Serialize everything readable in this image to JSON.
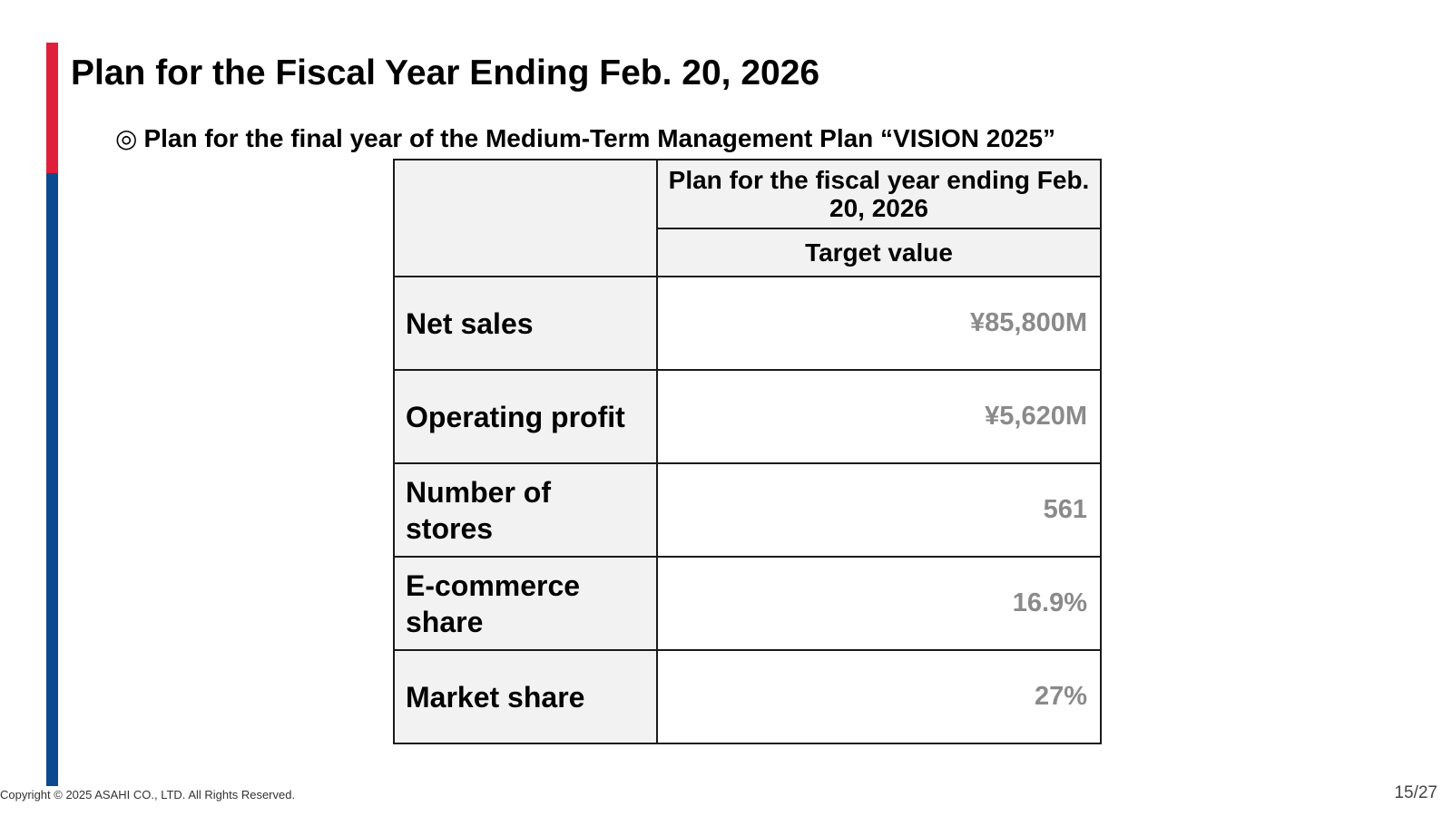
{
  "slide": {
    "title": "Plan for the Fiscal Year Ending Feb. 20, 2026",
    "subtitle_bullet": "◎",
    "subtitle": "Plan for the final year of the Medium-Term Management Plan “VISION 2025”"
  },
  "table": {
    "header_plan": "Plan for the fiscal year ending Feb. 20, 2026",
    "header_target": "Target value",
    "rows": [
      {
        "label": "Net sales",
        "value": "¥85,800M"
      },
      {
        "label": "Operating profit",
        "value": "¥5,620M"
      },
      {
        "label": "Number of stores",
        "value": "561"
      },
      {
        "label": "E-commerce share",
        "value": "16.9%"
      },
      {
        "label": "Market share",
        "value": "27%"
      }
    ]
  },
  "footer": {
    "copyright": "Copyright © 2025 ASAHI CO., LTD. All Rights Reserved.",
    "page": "15/27"
  },
  "colors": {
    "accent_red": "#e0203a",
    "accent_blue": "#0c4a8f",
    "value_text": "#8a8a8a"
  }
}
